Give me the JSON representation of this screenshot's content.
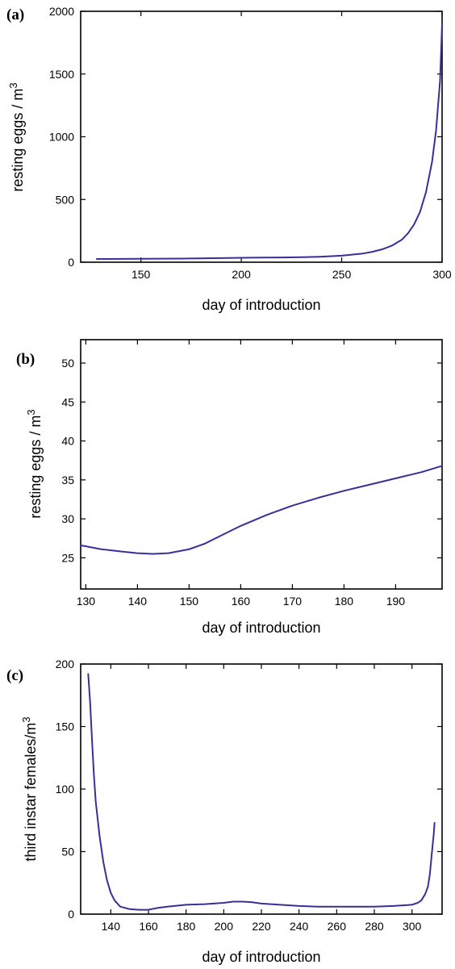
{
  "colors": {
    "line": "#35309a",
    "axes": "#000000",
    "background": "#ffffff"
  },
  "chart_data": [
    {
      "panel": "(a)",
      "type": "line",
      "xlabel": "day of introduction",
      "ylabel": "resting eggs / m",
      "ylabel_superscript": "3",
      "xlim": [
        120,
        300
      ],
      "ylim": [
        0,
        2000
      ],
      "xticks": [
        "150",
        "200",
        "250",
        "300"
      ],
      "yticks": [
        "0",
        "500",
        "1000",
        "1500",
        "2000"
      ],
      "series": [
        {
          "x": [
            128,
            150,
            170,
            190,
            200,
            210,
            220,
            230,
            240,
            250,
            260,
            265,
            270,
            275,
            280,
            283,
            286,
            289,
            292,
            295,
            297,
            299,
            300
          ],
          "y": [
            26,
            27,
            29,
            33,
            35,
            37,
            38,
            40,
            44,
            52,
            68,
            82,
            102,
            132,
            180,
            230,
            300,
            400,
            560,
            800,
            1050,
            1450,
            1900
          ]
        }
      ]
    },
    {
      "panel": "(b)",
      "type": "line",
      "xlabel": "day of introduction",
      "ylabel": "resting eggs / m",
      "ylabel_superscript": "3",
      "xlim": [
        129,
        199
      ],
      "ylim": [
        21,
        53
      ],
      "xticks": [
        "130",
        "140",
        "150",
        "160",
        "170",
        "180",
        "190"
      ],
      "yticks": [
        "25",
        "30",
        "35",
        "40",
        "45",
        "50"
      ],
      "series": [
        {
          "x": [
            129,
            133,
            137,
            140,
            143,
            146,
            150,
            153,
            156,
            160,
            165,
            170,
            175,
            180,
            185,
            190,
            195,
            199
          ],
          "y": [
            26.6,
            26.1,
            25.8,
            25.6,
            25.5,
            25.6,
            26.1,
            26.8,
            27.8,
            29.1,
            30.5,
            31.7,
            32.7,
            33.6,
            34.4,
            35.2,
            36.0,
            36.8
          ]
        }
      ]
    },
    {
      "panel": "(c)",
      "type": "line",
      "xlabel": "day of introduction",
      "ylabel": "third instar females/m",
      "ylabel_superscript": "3",
      "xlim": [
        124,
        316
      ],
      "ylim": [
        0,
        200
      ],
      "xticks": [
        "140",
        "160",
        "180",
        "200",
        "220",
        "240",
        "260",
        "280",
        "300"
      ],
      "yticks": [
        "0",
        "50",
        "100",
        "150",
        "200"
      ],
      "series": [
        {
          "x": [
            128,
            129,
            130,
            131,
            132,
            134,
            136,
            138,
            140,
            142,
            145,
            150,
            155,
            160,
            165,
            170,
            180,
            190,
            200,
            205,
            210,
            215,
            220,
            230,
            240,
            250,
            260,
            270,
            280,
            290,
            300,
            303,
            305,
            307,
            308.5,
            309.5,
            310.5,
            311.5,
            312
          ],
          "y": [
            192,
            170,
            140,
            112,
            90,
            63,
            42,
            27,
            17,
            11,
            6,
            4,
            3.5,
            3.5,
            5,
            6,
            7.5,
            8,
            9,
            10,
            10,
            9.5,
            8.5,
            7.5,
            6.5,
            6,
            6,
            6,
            6,
            6.5,
            7.5,
            9,
            11,
            16,
            22,
            32,
            48,
            63,
            73
          ]
        }
      ]
    }
  ]
}
